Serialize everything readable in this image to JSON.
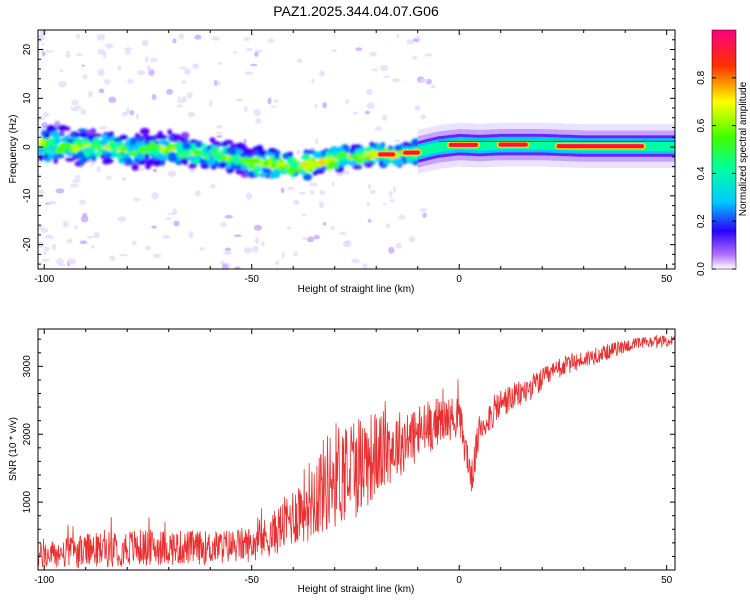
{
  "page_title": "PAZ1.2025.344.04.07.G06",
  "chart_data": [
    {
      "type": "heatmap",
      "title": "PAZ1.2025.344.04.07.G06",
      "xlabel": "Height of straight line (km)",
      "ylabel": "Frequency (Hz)",
      "xlim": [
        -101.5,
        52
      ],
      "ylim": [
        -25,
        24
      ],
      "xticks": [
        -100,
        -50,
        0,
        50
      ],
      "yticks": [
        -20,
        -10,
        0,
        10,
        20
      ],
      "xtick_labels": [
        "-100",
        "-50",
        "0",
        "50"
      ],
      "ytick_labels": [
        "-20",
        "-10",
        "0",
        "10",
        "20"
      ],
      "colorbar": {
        "label": "Normalized spectral amplitude",
        "range": [
          0,
          1
        ],
        "ticks": [
          0.0,
          0.2,
          0.4,
          0.6,
          0.8
        ],
        "tick_labels": [
          "0.0",
          "0.2",
          "0.4",
          "0.6",
          "0.8"
        ]
      },
      "ridge": {
        "x": [
          -100,
          -90,
          -80,
          -70,
          -60,
          -50,
          -45,
          -40,
          -35,
          -30,
          -25,
          -20,
          -15,
          -10,
          -5,
          0,
          5,
          10,
          20,
          30,
          40,
          52
        ],
        "y": [
          0.5,
          0.0,
          -0.5,
          -0.5,
          -1.5,
          -3.0,
          -3.5,
          -4.0,
          -3.5,
          -2.5,
          -2.0,
          -1.5,
          -1.5,
          -1.0,
          0.0,
          0.5,
          0.3,
          0.5,
          0.5,
          0.2,
          0.2,
          0.2
        ]
      }
    },
    {
      "type": "line",
      "xlabel": "Height of straight line (km)",
      "ylabel": "SNR (10 * v/v)",
      "xlim": [
        -101.5,
        52
      ],
      "ylim": [
        0,
        3550
      ],
      "xticks": [
        -100,
        -50,
        0,
        50
      ],
      "yticks": [
        1000,
        2000,
        3000
      ],
      "xtick_labels": [
        "-100",
        "-50",
        "0",
        "50"
      ],
      "ytick_labels": [
        "1000",
        "2000",
        "3000"
      ],
      "series": [
        {
          "name": "SNR",
          "color": "#e83030",
          "envelope_x": [
            -101.5,
            -90,
            -80,
            -70,
            -60,
            -50,
            -45,
            -40,
            -35,
            -30,
            -25,
            -20,
            -15,
            -10,
            -5,
            0,
            3,
            5,
            10,
            15,
            20,
            25,
            30,
            35,
            40,
            45,
            52
          ],
          "envelope_y": [
            200,
            280,
            330,
            330,
            330,
            380,
            520,
            800,
            1100,
            1400,
            1550,
            1700,
            1850,
            2000,
            2200,
            2250,
            1350,
            2100,
            2450,
            2600,
            2800,
            3000,
            3100,
            3200,
            3300,
            3350,
            3380
          ],
          "noise_amplitude": [
            200,
            250,
            280,
            260,
            250,
            260,
            320,
            450,
            650,
            800,
            800,
            650,
            500,
            450,
            350,
            300,
            250,
            260,
            230,
            200,
            170,
            150,
            130,
            120,
            100,
            90,
            80
          ]
        }
      ]
    }
  ]
}
